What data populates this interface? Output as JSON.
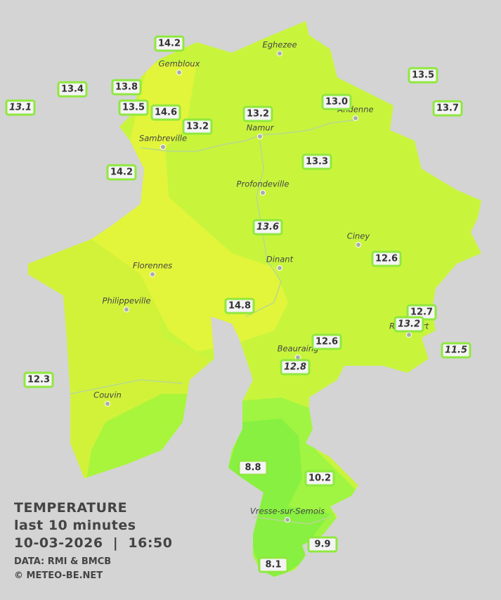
{
  "legend": {
    "title": "TEMPERATURE",
    "period": "last 10 minutes",
    "timestamp": "10-03-2026  |  16:50",
    "source": "DATA: RMI & BMCB",
    "credit": "© METEO-BE.NET"
  },
  "cities": [
    "Eghezee",
    "Gembloux",
    "Andenne",
    "Namur",
    "Sambreville",
    "Profondeville",
    "Ciney",
    "Dinant",
    "Florennes",
    "Philippeville",
    "Rochefort",
    "Beauraing",
    "Couvin",
    "Vresse-sur-Semois"
  ],
  "stations": [
    "14.2",
    "13.4",
    "13.8",
    "13.1",
    "13.5",
    "14.6",
    "13.2",
    "13.2",
    "13.0",
    "13.5",
    "13.7",
    "14.2",
    "13.3",
    "13.6",
    "12.6",
    "14.8",
    "12.7",
    "13.2",
    "12.6",
    "11.5",
    "12.8",
    "12.3",
    "8.8",
    "10.2",
    "9.9",
    "8.1"
  ]
}
